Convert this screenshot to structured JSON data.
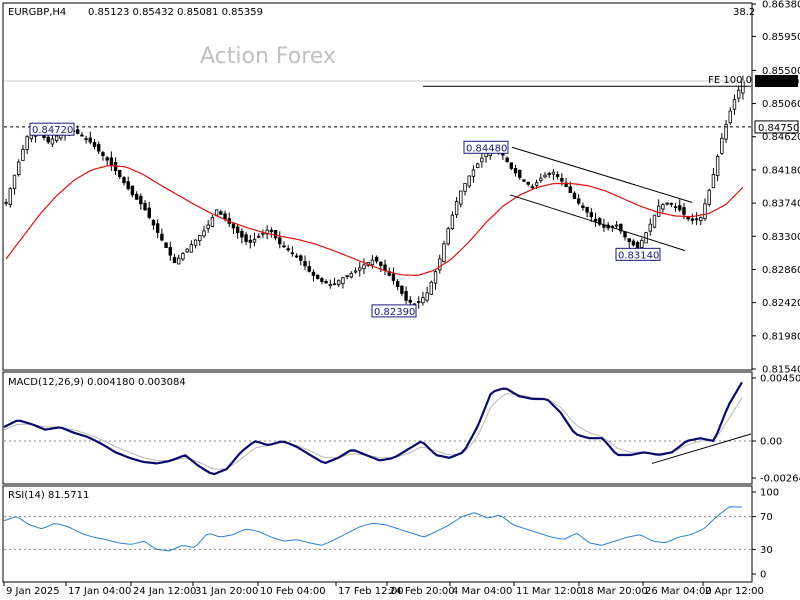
{
  "header": {
    "symbol": "EURGBP,H4",
    "ohlc": "0.85123 0.85432 0.85081 0.85359",
    "fib_label": "38.2",
    "watermark": "Action Forex"
  },
  "chart_data": [
    {
      "type": "candlestick",
      "title": "EURGBP,H4",
      "ylim": [
        0.8154,
        0.8638
      ],
      "y_ticks": [
        "0.86380",
        "0.85950",
        "0.85500",
        "0.85060",
        "0.84620",
        "0.84180",
        "0.83740",
        "0.83300",
        "0.82860",
        "0.82420",
        "0.81980",
        "0.81540"
      ],
      "x_ticks": [
        "9 Jan 2025",
        "17 Jan 04:00",
        "24 Jan 12:00",
        "31 Jan 20:00",
        "10 Feb 04:00",
        "17 Feb 12:00",
        "24 Feb 20:00",
        "4 Mar 04:00",
        "11 Mar 12:00",
        "18 Mar 20:00",
        "26 Mar 04:00",
        "2 Apr 12:00"
      ],
      "price_path": [
        [
          0.8375,
          0.842,
          0.8462,
          0.847,
          0.8455,
          0.8465,
          0.8472,
          0.8465,
          0.8455,
          0.844,
          0.8425,
          0.8405,
          0.8385,
          0.837,
          0.8345,
          0.832,
          0.8295,
          0.831,
          0.8325,
          0.834,
          0.8365,
          0.835,
          0.8335,
          0.832,
          0.833,
          0.834,
          0.832,
          0.831,
          0.8298,
          0.828,
          0.827,
          0.8265,
          0.8275,
          0.8282,
          0.8292,
          0.83,
          0.8285,
          0.8268,
          0.8245,
          0.8239,
          0.8255,
          0.829,
          0.834,
          0.8385,
          0.841,
          0.843,
          0.8448,
          0.8442,
          0.842,
          0.8405,
          0.8395,
          0.841,
          0.8415,
          0.84,
          0.838,
          0.8365,
          0.835,
          0.834,
          0.8345,
          0.8325,
          0.8314,
          0.834,
          0.837,
          0.8375,
          0.8365,
          0.835,
          0.8355,
          0.84,
          0.846,
          0.8505,
          0.8536
        ]
      ],
      "ma_path": [
        0.83,
        0.833,
        0.836,
        0.8385,
        0.8405,
        0.8418,
        0.8424,
        0.8422,
        0.8412,
        0.8398,
        0.8385,
        0.8372,
        0.836,
        0.835,
        0.8342,
        0.8335,
        0.833,
        0.8326,
        0.832,
        0.8312,
        0.8303,
        0.8294,
        0.8285,
        0.8279,
        0.8278,
        0.8285,
        0.83,
        0.8322,
        0.8348,
        0.837,
        0.8385,
        0.8395,
        0.84,
        0.84,
        0.8397,
        0.839,
        0.838,
        0.837,
        0.8362,
        0.8357,
        0.8356,
        0.836,
        0.8372,
        0.8395
      ],
      "levels": [
        {
          "label": "0.84720",
          "value": 0.8472
        },
        {
          "label": "0.84480",
          "value": 0.8448
        },
        {
          "label": "0.82390",
          "value": 0.8239
        },
        {
          "label": "0.83140",
          "value": 0.8314
        }
      ],
      "fe_label": "FE 100.0",
      "fe_value": 0.8529,
      "current_price": "0.85359",
      "current_value": 0.85359,
      "marked_level": "0.84750",
      "marked_value": 0.8475,
      "grid": false
    },
    {
      "type": "line",
      "title": "MACD(12,26,9) 0.004180 0.003084",
      "y_ticks": [
        "0.004504",
        "0.00",
        "-0.002642"
      ],
      "ylim": [
        -0.002642,
        0.004504
      ],
      "series": [
        {
          "name": "MACD",
          "values": [
            0.001,
            0.0015,
            0.0012,
            0.0008,
            0.001,
            0.0006,
            0.0003,
            -0.0002,
            -0.0008,
            -0.0012,
            -0.0015,
            -0.0016,
            -0.0014,
            -0.001,
            -0.0018,
            -0.0024,
            -0.002,
            -0.0008,
            0.0,
            -0.0003,
            0.0,
            -0.0004,
            -0.001,
            -0.0016,
            -0.0012,
            -0.0006,
            -0.001,
            -0.0014,
            -0.0012,
            -0.0006,
            0.0,
            -0.001,
            -0.0012,
            -0.0008,
            0.001,
            0.0035,
            0.0038,
            0.0032,
            0.003,
            0.003,
            0.002,
            0.0005,
            0.0002,
            0.0002,
            -0.001,
            -0.001,
            -0.0008,
            -0.001,
            -0.0008,
            0.0,
            0.0002,
            0.0,
            0.0025,
            0.0042
          ]
        },
        {
          "name": "Signal",
          "values": [
            0.0008,
            0.0012,
            0.0012,
            0.001,
            0.001,
            0.0008,
            0.0005,
            0.0001,
            -0.0004,
            -0.0008,
            -0.0012,
            -0.0014,
            -0.0014,
            -0.0012,
            -0.0015,
            -0.002,
            -0.002,
            -0.0013,
            -0.0005,
            -0.0003,
            -0.0001,
            -0.0003,
            -0.0007,
            -0.0012,
            -0.0012,
            -0.0009,
            -0.001,
            -0.0012,
            -0.0012,
            -0.0009,
            -0.0004,
            -0.0007,
            -0.001,
            -0.0009,
            0.0003,
            0.0025,
            0.0034,
            0.0033,
            0.0031,
            0.003,
            0.0024,
            0.0012,
            0.0006,
            0.0003,
            -0.0005,
            -0.0008,
            -0.0008,
            -0.0009,
            -0.0008,
            -0.0003,
            0.0,
            0.0,
            0.0015,
            0.0031
          ]
        }
      ]
    },
    {
      "type": "line",
      "title": "RSI(14) 81.5711",
      "y_ticks": [
        "100",
        "70",
        "30",
        "0"
      ],
      "ylim": [
        0,
        100
      ],
      "series": [
        {
          "name": "RSI",
          "values": [
            65,
            70,
            60,
            55,
            62,
            58,
            50,
            45,
            42,
            38,
            36,
            40,
            30,
            28,
            35,
            32,
            50,
            45,
            48,
            55,
            52,
            45,
            40,
            42,
            38,
            35,
            42,
            50,
            58,
            62,
            60,
            55,
            50,
            45,
            52,
            60,
            70,
            75,
            68,
            72,
            60,
            55,
            50,
            45,
            42,
            50,
            38,
            35,
            40,
            45,
            48,
            40,
            38,
            45,
            48,
            55,
            70,
            82,
            81.57
          ]
        }
      ]
    }
  ]
}
